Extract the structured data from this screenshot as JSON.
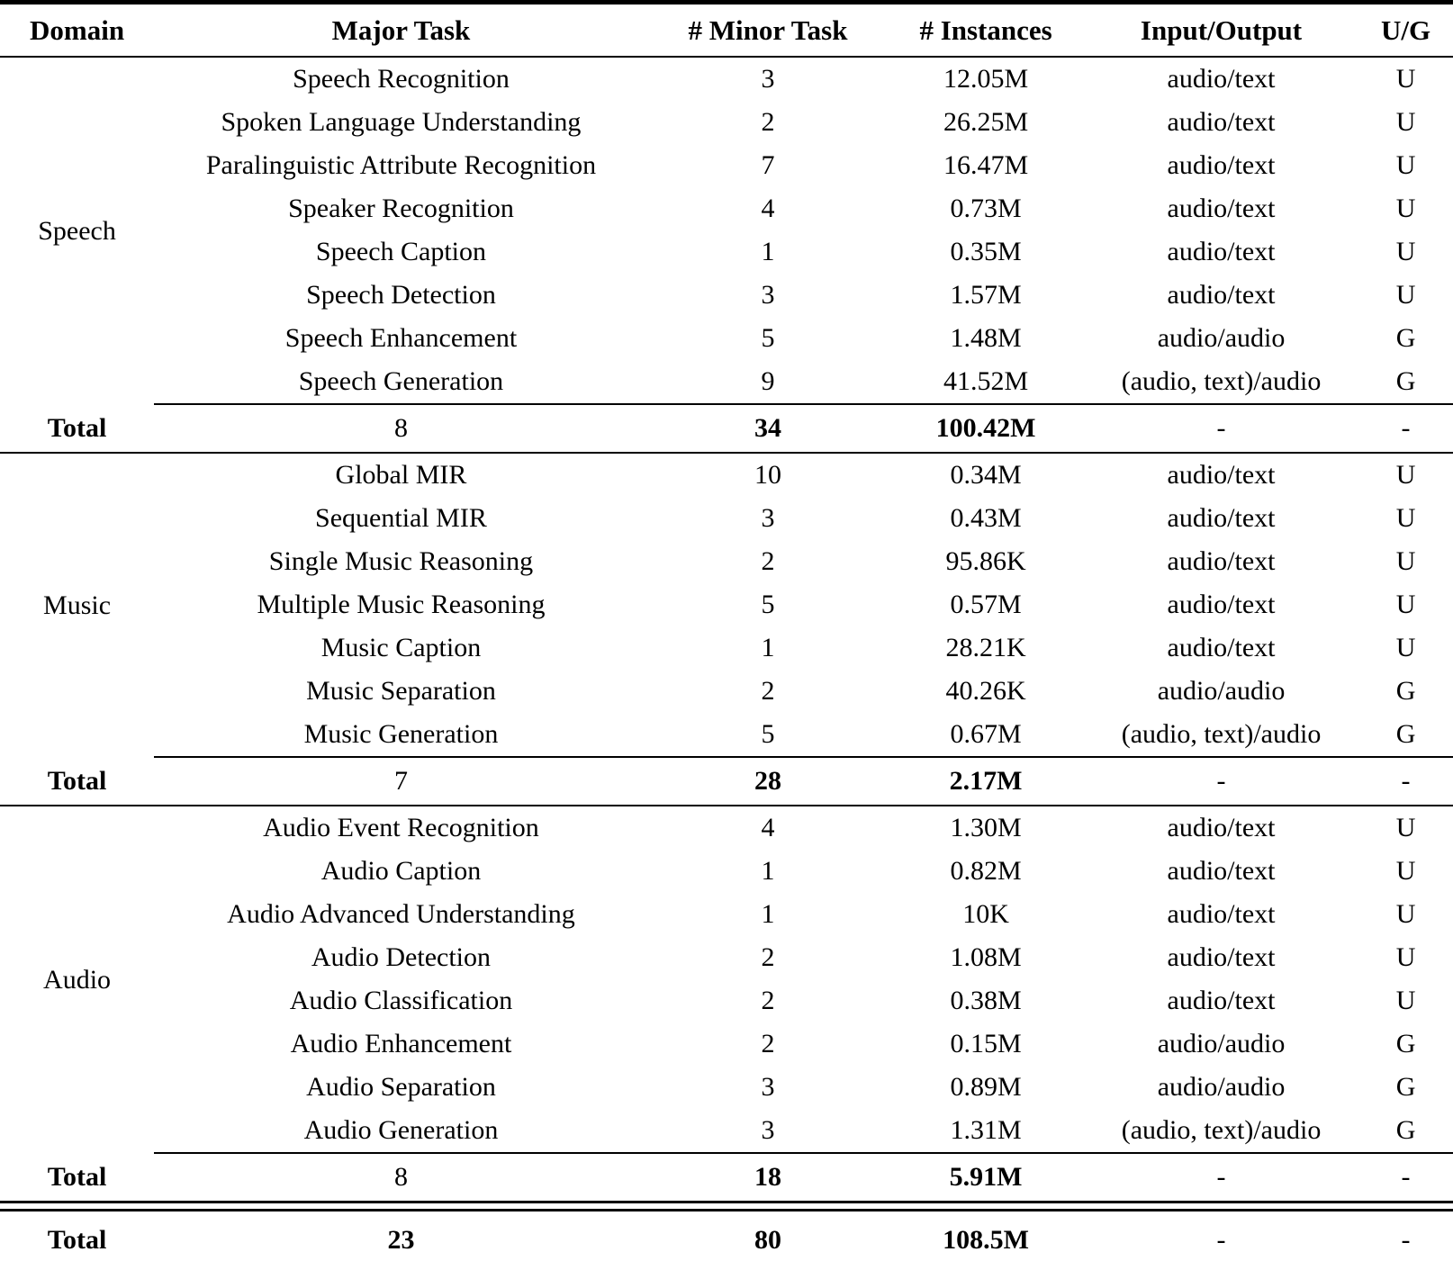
{
  "table": {
    "columns": [
      "Domain",
      "Major Task",
      "# Minor Task",
      "# Instances",
      "Input/Output",
      "U/G"
    ],
    "sections": [
      {
        "domain": "Speech",
        "rows": [
          {
            "major_task": "Speech Recognition",
            "minor_tasks": "3",
            "instances": "12.05M",
            "io": "audio/text",
            "ug": "U"
          },
          {
            "major_task": "Spoken Language Understanding",
            "minor_tasks": "2",
            "instances": "26.25M",
            "io": "audio/text",
            "ug": "U"
          },
          {
            "major_task": "Paralinguistic Attribute Recognition",
            "minor_tasks": "7",
            "instances": "16.47M",
            "io": "audio/text",
            "ug": "U"
          },
          {
            "major_task": "Speaker Recognition",
            "minor_tasks": "4",
            "instances": "0.73M",
            "io": "audio/text",
            "ug": "U"
          },
          {
            "major_task": "Speech Caption",
            "minor_tasks": "1",
            "instances": "0.35M",
            "io": "audio/text",
            "ug": "U"
          },
          {
            "major_task": "Speech Detection",
            "minor_tasks": "3",
            "instances": "1.57M",
            "io": "audio/text",
            "ug": "U"
          },
          {
            "major_task": "Speech Enhancement",
            "minor_tasks": "5",
            "instances": "1.48M",
            "io": "audio/audio",
            "ug": "G"
          },
          {
            "major_task": "Speech Generation",
            "minor_tasks": "9",
            "instances": "41.52M",
            "io": "(audio, text)/audio",
            "ug": "G"
          }
        ],
        "total": {
          "label": "Total",
          "major_task_count": "8",
          "minor_tasks": "34",
          "instances": "100.42M",
          "io": "-",
          "ug": "-"
        }
      },
      {
        "domain": "Music",
        "rows": [
          {
            "major_task": "Global MIR",
            "minor_tasks": "10",
            "instances": "0.34M",
            "io": "audio/text",
            "ug": "U"
          },
          {
            "major_task": "Sequential MIR",
            "minor_tasks": "3",
            "instances": "0.43M",
            "io": "audio/text",
            "ug": "U"
          },
          {
            "major_task": "Single Music Reasoning",
            "minor_tasks": "2",
            "instances": "95.86K",
            "io": "audio/text",
            "ug": "U"
          },
          {
            "major_task": "Multiple Music Reasoning",
            "minor_tasks": "5",
            "instances": "0.57M",
            "io": "audio/text",
            "ug": "U"
          },
          {
            "major_task": "Music Caption",
            "minor_tasks": "1",
            "instances": "28.21K",
            "io": "audio/text",
            "ug": "U"
          },
          {
            "major_task": "Music Separation",
            "minor_tasks": "2",
            "instances": "40.26K",
            "io": "audio/audio",
            "ug": "G"
          },
          {
            "major_task": "Music Generation",
            "minor_tasks": "5",
            "instances": "0.67M",
            "io": "(audio, text)/audio",
            "ug": "G"
          }
        ],
        "total": {
          "label": "Total",
          "major_task_count": "7",
          "minor_tasks": "28",
          "instances": "2.17M",
          "io": "-",
          "ug": "-"
        }
      },
      {
        "domain": "Audio",
        "rows": [
          {
            "major_task": "Audio Event Recognition",
            "minor_tasks": "4",
            "instances": "1.30M",
            "io": "audio/text",
            "ug": "U"
          },
          {
            "major_task": "Audio Caption",
            "minor_tasks": "1",
            "instances": "0.82M",
            "io": "audio/text",
            "ug": "U"
          },
          {
            "major_task": "Audio Advanced Understanding",
            "minor_tasks": "1",
            "instances": "10K",
            "io": "audio/text",
            "ug": "U"
          },
          {
            "major_task": "Audio Detection",
            "minor_tasks": "2",
            "instances": "1.08M",
            "io": "audio/text",
            "ug": "U"
          },
          {
            "major_task": "Audio Classification",
            "minor_tasks": "2",
            "instances": "0.38M",
            "io": "audio/text",
            "ug": "U"
          },
          {
            "major_task": "Audio Enhancement",
            "minor_tasks": "2",
            "instances": "0.15M",
            "io": "audio/audio",
            "ug": "G"
          },
          {
            "major_task": "Audio Separation",
            "minor_tasks": "3",
            "instances": "0.89M",
            "io": "audio/audio",
            "ug": "G"
          },
          {
            "major_task": "Audio Generation",
            "minor_tasks": "3",
            "instances": "1.31M",
            "io": "(audio, text)/audio",
            "ug": "G"
          }
        ],
        "total": {
          "label": "Total",
          "major_task_count": "8",
          "minor_tasks": "18",
          "instances": "5.91M",
          "io": "-",
          "ug": "-"
        }
      }
    ],
    "grand_total": {
      "label": "Total",
      "major_task_count": "23",
      "minor_tasks": "80",
      "instances": "108.5M",
      "io": "-",
      "ug": "-"
    }
  }
}
